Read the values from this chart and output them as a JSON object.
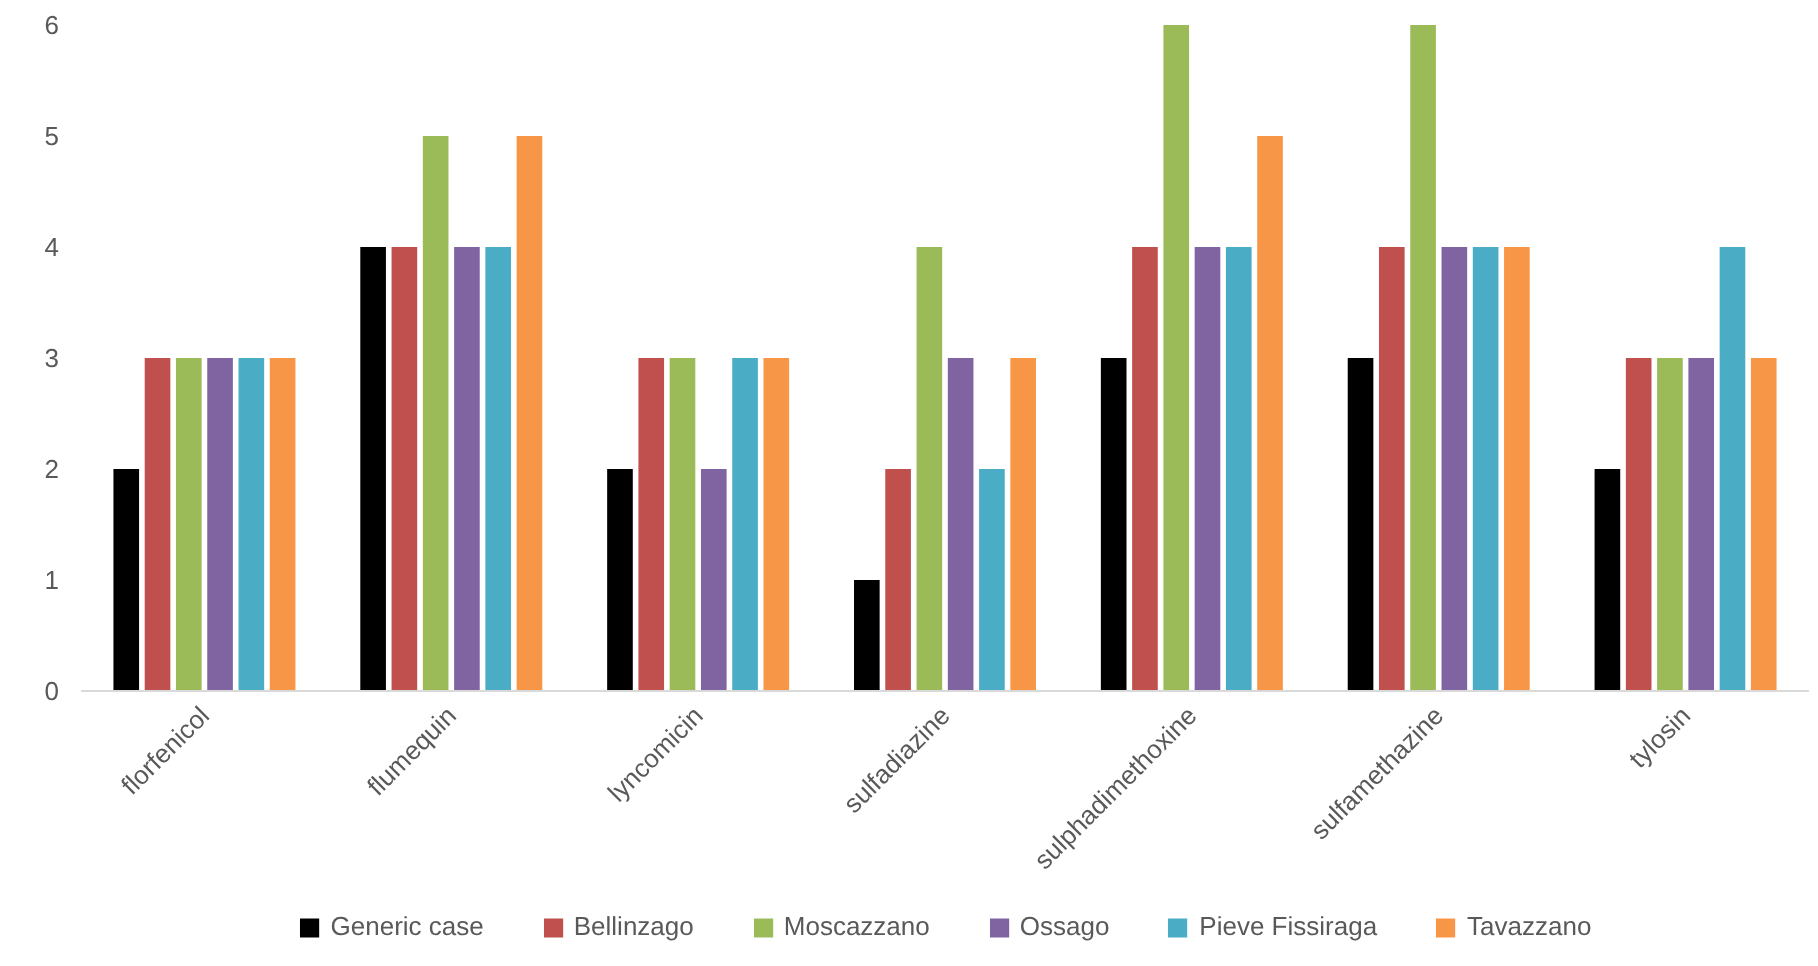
{
  "chart_data": {
    "type": "bar",
    "categories": [
      "florfenicol",
      "flumequin",
      "lyncomicin",
      "sulfadiazine",
      "sulphadimethoxine",
      "sulfamethazine",
      "tylosin"
    ],
    "series": [
      {
        "name": "Generic case",
        "color": "#000000",
        "values": [
          2,
          4,
          2,
          1,
          3,
          3,
          2
        ]
      },
      {
        "name": "Bellinzago",
        "color": "#c0504d",
        "values": [
          3,
          4,
          3,
          2,
          4,
          4,
          3
        ]
      },
      {
        "name": "Moscazzano",
        "color": "#9bbb59",
        "values": [
          3,
          5,
          3,
          4,
          6,
          6,
          3
        ]
      },
      {
        "name": "Ossago",
        "color": "#8064a2",
        "values": [
          3,
          4,
          2,
          3,
          4,
          4,
          3
        ]
      },
      {
        "name": "Pieve Fissiraga",
        "color": "#4bacc6",
        "values": [
          3,
          4,
          3,
          2,
          4,
          4,
          4
        ]
      },
      {
        "name": "Tavazzano",
        "color": "#f79646",
        "values": [
          3,
          5,
          3,
          3,
          5,
          4,
          3
        ]
      }
    ],
    "ylim": [
      0,
      6
    ],
    "yticks": [
      0,
      1,
      2,
      3,
      4,
      5,
      6
    ],
    "grid": false,
    "legend": "bottom"
  }
}
